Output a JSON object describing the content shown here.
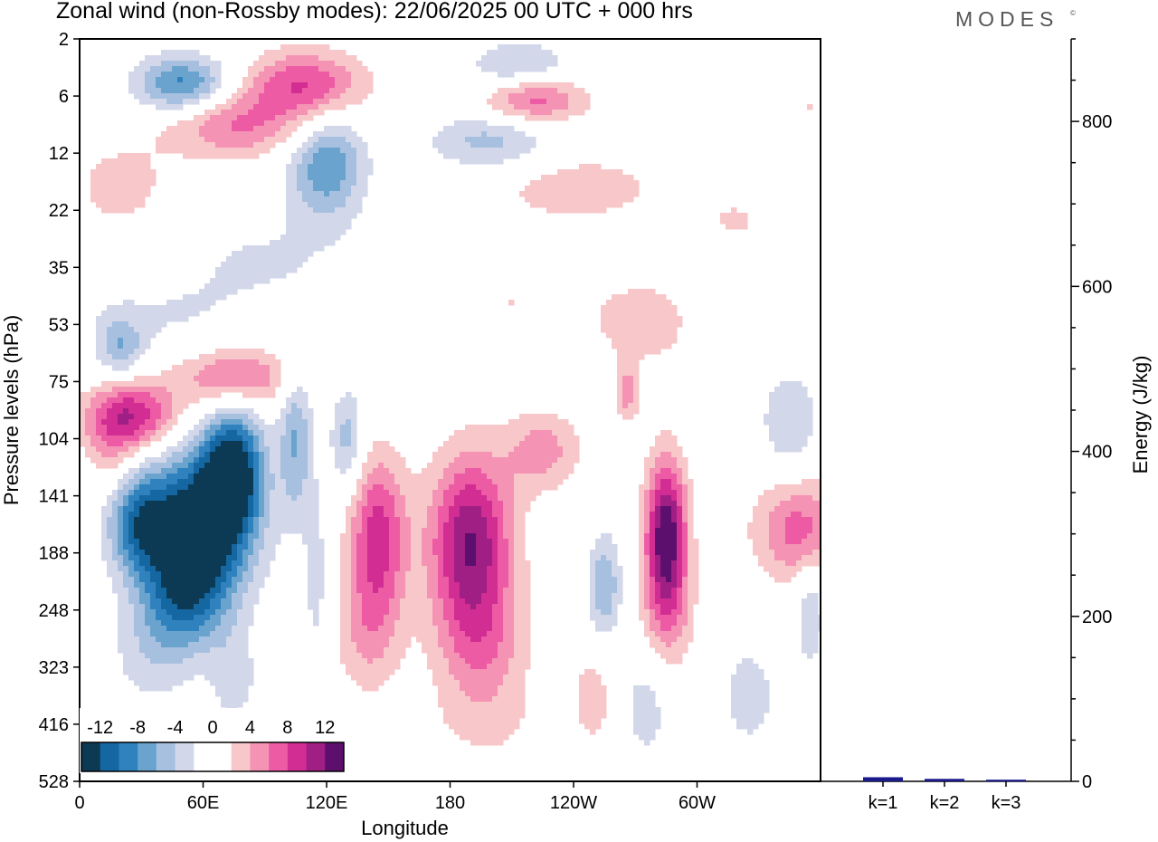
{
  "title": "Zonal wind (non-Rossby modes):  22/06/2025  00 UTC  + 000 hrs",
  "brand": "MODES",
  "brand_mark": "©",
  "chart_data": [
    {
      "type": "heatmap",
      "xlabel": "Longitude",
      "ylabel": "Pressure levels (hPa)",
      "x_ticks": [
        "0",
        "60E",
        "120E",
        "180",
        "120W",
        "60W"
      ],
      "x_tick_values": [
        0,
        60,
        120,
        180,
        240,
        300
      ],
      "xlim": [
        0,
        360
      ],
      "y_ticks": [
        "2",
        "6",
        "12",
        "22",
        "35",
        "53",
        "75",
        "104",
        "141",
        "188",
        "248",
        "323",
        "416",
        "528"
      ],
      "y_axis": "pressure levels, top to bottom",
      "colorbar": {
        "tick_labels": [
          "-12",
          "-8",
          "-4",
          "0",
          "4",
          "8",
          "12"
        ],
        "colors": [
          "#0c3a55",
          "#1467a0",
          "#2f82bd",
          "#6aa4ce",
          "#a8c0df",
          "#d2d7ea",
          "#ffffff",
          "#ffffff",
          "#f8c7c9",
          "#f593b5",
          "#ed5ba5",
          "#d12d92",
          "#a01f84",
          "#5d0f6e"
        ]
      },
      "anomalies": [
        {
          "lon": 60,
          "lev": 8.5,
          "value": -15,
          "w": 24,
          "h": 1.3
        },
        {
          "lon": 30,
          "lev": 8.5,
          "value": -10,
          "w": 16,
          "h": 0.9
        },
        {
          "lon": 75,
          "lev": 7.5,
          "value": -12,
          "w": 14,
          "h": 1.0
        },
        {
          "lon": 50,
          "lev": 9.8,
          "value": -8,
          "w": 20,
          "h": 0.9
        },
        {
          "lon": 35,
          "lev": 10.8,
          "value": -3,
          "w": 20,
          "h": 0.9
        },
        {
          "lon": 75,
          "lev": 11.2,
          "value": -3,
          "w": 12,
          "h": 0.9
        },
        {
          "lon": 25,
          "lev": 6.6,
          "value": 10,
          "w": 22,
          "h": 0.6
        },
        {
          "lon": 75,
          "lev": 5.9,
          "value": 7,
          "w": 30,
          "h": 0.55
        },
        {
          "lon": 15,
          "lev": 7.3,
          "value": 3,
          "w": 12,
          "h": 0.7
        },
        {
          "lon": 105,
          "lev": 7.0,
          "value": -6,
          "w": 8,
          "h": 1.4
        },
        {
          "lon": 130,
          "lev": 7.0,
          "value": -5,
          "w": 8,
          "h": 0.9
        },
        {
          "lon": 115,
          "lev": 9.5,
          "value": -3,
          "w": 6,
          "h": 1.6
        },
        {
          "lon": 145,
          "lev": 8.7,
          "value": 9,
          "w": 14,
          "h": 1.4
        },
        {
          "lon": 140,
          "lev": 10.4,
          "value": 4,
          "w": 16,
          "h": 1.1
        },
        {
          "lon": 190,
          "lev": 8.8,
          "value": 12,
          "w": 20,
          "h": 1.5
        },
        {
          "lon": 195,
          "lev": 10.6,
          "value": 5,
          "w": 22,
          "h": 1.1
        },
        {
          "lon": 225,
          "lev": 7.2,
          "value": 5,
          "w": 18,
          "h": 0.7
        },
        {
          "lon": 198,
          "lev": 12.0,
          "value": 2,
          "w": 30,
          "h": 0.8
        },
        {
          "lon": 255,
          "lev": 9.6,
          "value": -6,
          "w": 8,
          "h": 0.9
        },
        {
          "lon": 266,
          "lev": 6.2,
          "value": 5,
          "w": 6,
          "h": 0.5
        },
        {
          "lon": 285,
          "lev": 8.7,
          "value": 14,
          "w": 10,
          "h": 1.3
        },
        {
          "lon": 285,
          "lev": 10.2,
          "value": 4,
          "w": 14,
          "h": 1.0
        },
        {
          "lon": 350,
          "lev": 8.6,
          "value": 7,
          "w": 22,
          "h": 0.9
        },
        {
          "lon": 345,
          "lev": 6.7,
          "value": -4,
          "w": 14,
          "h": 0.9
        },
        {
          "lon": 355,
          "lev": 10.0,
          "value": -4,
          "w": 7,
          "h": 1.0
        },
        {
          "lon": 50,
          "lev": 0.8,
          "value": -9,
          "w": 22,
          "h": 0.5
        },
        {
          "lon": 75,
          "lev": 1.5,
          "value": 6,
          "w": 35,
          "h": 0.6
        },
        {
          "lon": 110,
          "lev": 0.8,
          "value": 8,
          "w": 28,
          "h": 0.6
        },
        {
          "lon": 215,
          "lev": 0.6,
          "value": -6,
          "w": 25,
          "h": 0.5
        },
        {
          "lon": 220,
          "lev": 1.0,
          "value": 9,
          "w": 25,
          "h": 0.45
        },
        {
          "lon": 200,
          "lev": 1.8,
          "value": -5,
          "w": 30,
          "h": 0.5
        },
        {
          "lon": 120,
          "lev": 2.2,
          "value": -8,
          "w": 18,
          "h": 0.9
        },
        {
          "lon": 90,
          "lev": 3.8,
          "value": -2,
          "w": 50,
          "h": 0.9
        },
        {
          "lon": 240,
          "lev": 2.6,
          "value": 3,
          "w": 45,
          "h": 0.7
        },
        {
          "lon": 210,
          "lev": 4.6,
          "value": 2,
          "w": 45,
          "h": 0.8
        },
        {
          "lon": 20,
          "lev": 2.6,
          "value": 3,
          "w": 25,
          "h": 0.8
        },
        {
          "lon": 320,
          "lev": 3.2,
          "value": 2,
          "w": 35,
          "h": 0.9
        },
        {
          "lon": 40,
          "lev": 5.0,
          "value": -2,
          "w": 55,
          "h": 0.9
        },
        {
          "lon": 20,
          "lev": 5.4,
          "value": -5,
          "w": 10,
          "h": 0.5
        },
        {
          "lon": 275,
          "lev": 5.0,
          "value": 3,
          "w": 25,
          "h": 0.8
        },
        {
          "lon": 325,
          "lev": 11.5,
          "value": -3,
          "w": 15,
          "h": 1.0
        },
        {
          "lon": 250,
          "lev": 11.5,
          "value": 3,
          "w": 12,
          "h": 1.0
        },
        {
          "lon": 275,
          "lev": 11.6,
          "value": -3,
          "w": 14,
          "h": 1.2
        },
        {
          "lon": 355,
          "lev": 1.2,
          "value": 2,
          "w": 15,
          "h": 1.0
        }
      ]
    },
    {
      "type": "bar",
      "categories": [
        "k=1",
        "k=2",
        "k=3"
      ],
      "values": [
        5,
        3,
        2
      ],
      "ylabel": "Energy (J/kg)",
      "ylim": [
        0,
        900
      ],
      "y_ticks": [
        "0",
        "200",
        "400",
        "600",
        "800"
      ],
      "y_tick_values": [
        0,
        200,
        400,
        600,
        800
      ],
      "bar_color": "#1a1a8c"
    }
  ]
}
